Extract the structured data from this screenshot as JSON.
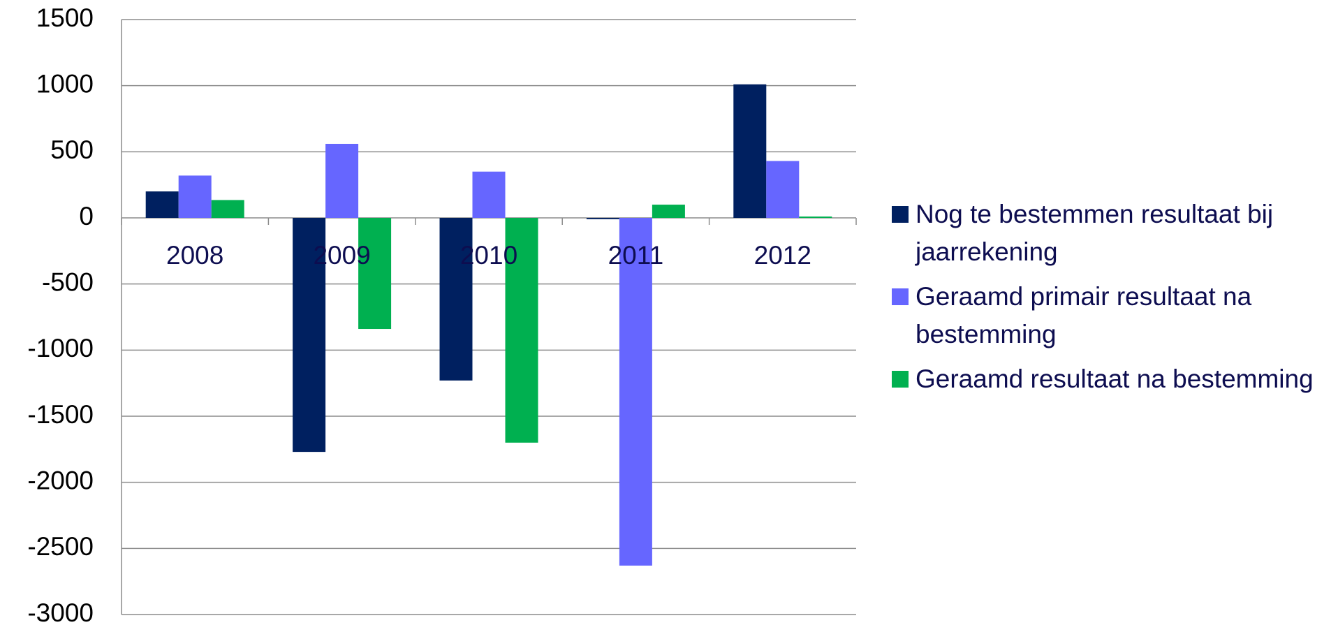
{
  "chart_data": {
    "type": "bar",
    "categories": [
      "2008",
      "2009",
      "2010",
      "2011",
      "2012"
    ],
    "series": [
      {
        "name": "Nog te bestemmen resultaat bij jaarrekening",
        "color": "#002060",
        "values": [
          200,
          -1770,
          -1230,
          -10,
          1010
        ]
      },
      {
        "name": "Geraamd primair resultaat na bestemming",
        "color": "#6666ff",
        "values": [
          320,
          560,
          350,
          -2630,
          430
        ]
      },
      {
        "name": "Geraamd resultaat na bestemming",
        "color": "#00b050",
        "values": [
          135,
          -840,
          -1700,
          100,
          10
        ]
      }
    ],
    "ylim": [
      -3000,
      1500
    ],
    "yticks": [
      -3000,
      -2500,
      -2000,
      -1500,
      -1000,
      -500,
      0,
      500,
      1000,
      1500
    ],
    "grid": true,
    "legend": "right"
  }
}
